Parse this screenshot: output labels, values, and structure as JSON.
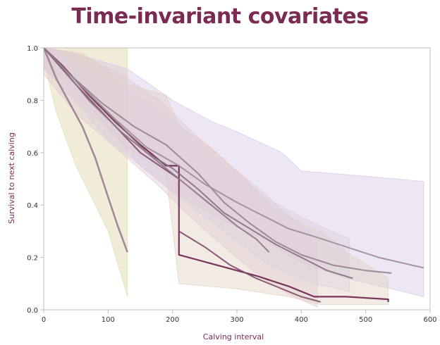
{
  "chart_data": {
    "type": "line",
    "title": "Time-invariant covariates",
    "xlabel": "Calving interval",
    "ylabel": "Survival to next calving",
    "xlim": [
      0,
      600
    ],
    "ylim": [
      0,
      1
    ],
    "xticks": [
      "0",
      "100",
      "200",
      "300",
      "400",
      "500",
      "600"
    ],
    "yticks": [
      "0.0",
      "0.2",
      "0.4",
      "0.6",
      "0.8",
      "1.0"
    ],
    "grid": false,
    "legend": "none",
    "colors": {
      "title": "#7b2a52",
      "axis_label": "#7b2a52",
      "axis": "#c8b8c4"
    },
    "bands": [
      {
        "color": "#e6dcb6",
        "opacity": 0.55,
        "upper": [
          [
            0,
            1.0
          ],
          [
            130,
            1.0
          ],
          [
            130,
            0.6
          ]
        ],
        "lower": [
          [
            0,
            0.95
          ],
          [
            20,
            0.75
          ],
          [
            50,
            0.55
          ],
          [
            100,
            0.3
          ],
          [
            130,
            0.05
          ]
        ]
      },
      {
        "color": "#d8c8e6",
        "opacity": 0.45,
        "upper": [
          [
            0,
            1.0
          ],
          [
            60,
            0.97
          ],
          [
            130,
            0.92
          ],
          [
            200,
            0.8
          ],
          [
            260,
            0.72
          ],
          [
            300,
            0.68
          ],
          [
            370,
            0.6
          ],
          [
            400,
            0.53
          ],
          [
            500,
            0.51
          ],
          [
            590,
            0.49
          ]
        ],
        "lower": [
          [
            0,
            0.95
          ],
          [
            80,
            0.75
          ],
          [
            150,
            0.55
          ],
          [
            200,
            0.45
          ],
          [
            280,
            0.34
          ],
          [
            340,
            0.27
          ],
          [
            400,
            0.18
          ],
          [
            470,
            0.12
          ],
          [
            540,
            0.08
          ],
          [
            590,
            0.05
          ]
        ]
      },
      {
        "color": "#e2d2c2",
        "opacity": 0.45,
        "upper": [
          [
            0,
            1.0
          ],
          [
            60,
            0.98
          ],
          [
            130,
            0.86
          ],
          [
            190,
            0.82
          ],
          [
            210,
            0.7
          ],
          [
            260,
            0.62
          ],
          [
            320,
            0.48
          ],
          [
            360,
            0.38
          ],
          [
            430,
            0.3
          ],
          [
            470,
            0.22
          ],
          [
            535,
            0.12
          ]
        ],
        "lower": [
          [
            0,
            0.92
          ],
          [
            60,
            0.78
          ],
          [
            130,
            0.62
          ],
          [
            190,
            0.52
          ],
          [
            210,
            0.1
          ],
          [
            300,
            0.08
          ],
          [
            380,
            0.05
          ],
          [
            430,
            0.02
          ],
          [
            535,
            0.02
          ]
        ]
      },
      {
        "color": "#e2c7d2",
        "opacity": 0.4,
        "upper": [
          [
            0,
            1.0
          ],
          [
            50,
            0.98
          ],
          [
            120,
            0.9
          ],
          [
            180,
            0.8
          ],
          [
            230,
            0.68
          ],
          [
            290,
            0.55
          ],
          [
            340,
            0.45
          ],
          [
            380,
            0.36
          ],
          [
            425,
            0.27
          ]
        ],
        "lower": [
          [
            0,
            0.9
          ],
          [
            50,
            0.75
          ],
          [
            120,
            0.6
          ],
          [
            180,
            0.47
          ],
          [
            230,
            0.35
          ],
          [
            290,
            0.22
          ],
          [
            340,
            0.12
          ],
          [
            380,
            0.06
          ],
          [
            425,
            0.01
          ]
        ]
      },
      {
        "color": "#dccfe0",
        "opacity": 0.4,
        "upper": [
          [
            0,
            1.0
          ],
          [
            100,
            0.88
          ],
          [
            200,
            0.73
          ],
          [
            280,
            0.55
          ],
          [
            350,
            0.42
          ],
          [
            420,
            0.33
          ],
          [
            475,
            0.27
          ]
        ],
        "lower": [
          [
            0,
            0.93
          ],
          [
            100,
            0.65
          ],
          [
            200,
            0.45
          ],
          [
            280,
            0.3
          ],
          [
            350,
            0.17
          ],
          [
            420,
            0.1
          ],
          [
            475,
            0.07
          ]
        ]
      }
    ],
    "series": [
      {
        "color": "#9b7c90",
        "width": 2.5,
        "points": [
          [
            0,
            1.0
          ],
          [
            20,
            0.88
          ],
          [
            40,
            0.79
          ],
          [
            60,
            0.7
          ],
          [
            80,
            0.58
          ],
          [
            100,
            0.43
          ],
          [
            115,
            0.32
          ],
          [
            130,
            0.22
          ]
        ]
      },
      {
        "color": "#6d1f4a",
        "width": 2.2,
        "points": [
          [
            0,
            1.0
          ],
          [
            30,
            0.93
          ],
          [
            70,
            0.82
          ],
          [
            110,
            0.72
          ],
          [
            150,
            0.63
          ],
          [
            190,
            0.55
          ],
          [
            210,
            0.55
          ],
          [
            210,
            0.21
          ],
          [
            270,
            0.17
          ],
          [
            330,
            0.13
          ],
          [
            380,
            0.09
          ],
          [
            420,
            0.05
          ],
          [
            470,
            0.05
          ],
          [
            535,
            0.04
          ],
          [
            535,
            0.03
          ]
        ]
      },
      {
        "color": "#9a8090",
        "width": 2.0,
        "points": [
          [
            0,
            1.0
          ],
          [
            40,
            0.9
          ],
          [
            90,
            0.79
          ],
          [
            140,
            0.7
          ],
          [
            190,
            0.63
          ],
          [
            240,
            0.52
          ],
          [
            280,
            0.41
          ],
          [
            320,
            0.33
          ],
          [
            360,
            0.26
          ],
          [
            400,
            0.21
          ],
          [
            450,
            0.17
          ],
          [
            500,
            0.15
          ],
          [
            540,
            0.14
          ]
        ]
      },
      {
        "color": "#8a6f82",
        "width": 2.0,
        "points": [
          [
            0,
            1.0
          ],
          [
            40,
            0.9
          ],
          [
            80,
            0.8
          ],
          [
            120,
            0.7
          ],
          [
            160,
            0.6
          ],
          [
            200,
            0.54
          ],
          [
            240,
            0.46
          ],
          [
            280,
            0.37
          ],
          [
            320,
            0.31
          ],
          [
            360,
            0.25
          ],
          [
            400,
            0.2
          ],
          [
            440,
            0.15
          ],
          [
            480,
            0.12
          ]
        ]
      },
      {
        "color": "#a08b99",
        "width": 2.0,
        "points": [
          [
            0,
            1.0
          ],
          [
            60,
            0.85
          ],
          [
            110,
            0.73
          ],
          [
            160,
            0.62
          ],
          [
            210,
            0.55
          ],
          [
            250,
            0.48
          ],
          [
            300,
            0.41
          ],
          [
            340,
            0.36
          ],
          [
            380,
            0.31
          ],
          [
            420,
            0.28
          ],
          [
            470,
            0.24
          ],
          [
            520,
            0.2
          ],
          [
            590,
            0.16
          ]
        ]
      },
      {
        "color": "#7f4b69",
        "width": 2.0,
        "points": [
          [
            0,
            1.0
          ],
          [
            50,
            0.86
          ],
          [
            100,
            0.73
          ],
          [
            150,
            0.6
          ],
          [
            210,
            0.5
          ],
          [
            210,
            0.3
          ],
          [
            250,
            0.24
          ],
          [
            290,
            0.17
          ],
          [
            330,
            0.12
          ],
          [
            370,
            0.08
          ],
          [
            400,
            0.05
          ],
          [
            430,
            0.03
          ]
        ]
      },
      {
        "color": "#8d7386",
        "width": 2.0,
        "points": [
          [
            0,
            1.0
          ],
          [
            30,
            0.92
          ],
          [
            70,
            0.8
          ],
          [
            120,
            0.68
          ],
          [
            170,
            0.58
          ],
          [
            220,
            0.48
          ],
          [
            260,
            0.4
          ],
          [
            300,
            0.32
          ],
          [
            330,
            0.27
          ],
          [
            350,
            0.22
          ]
        ]
      }
    ]
  }
}
